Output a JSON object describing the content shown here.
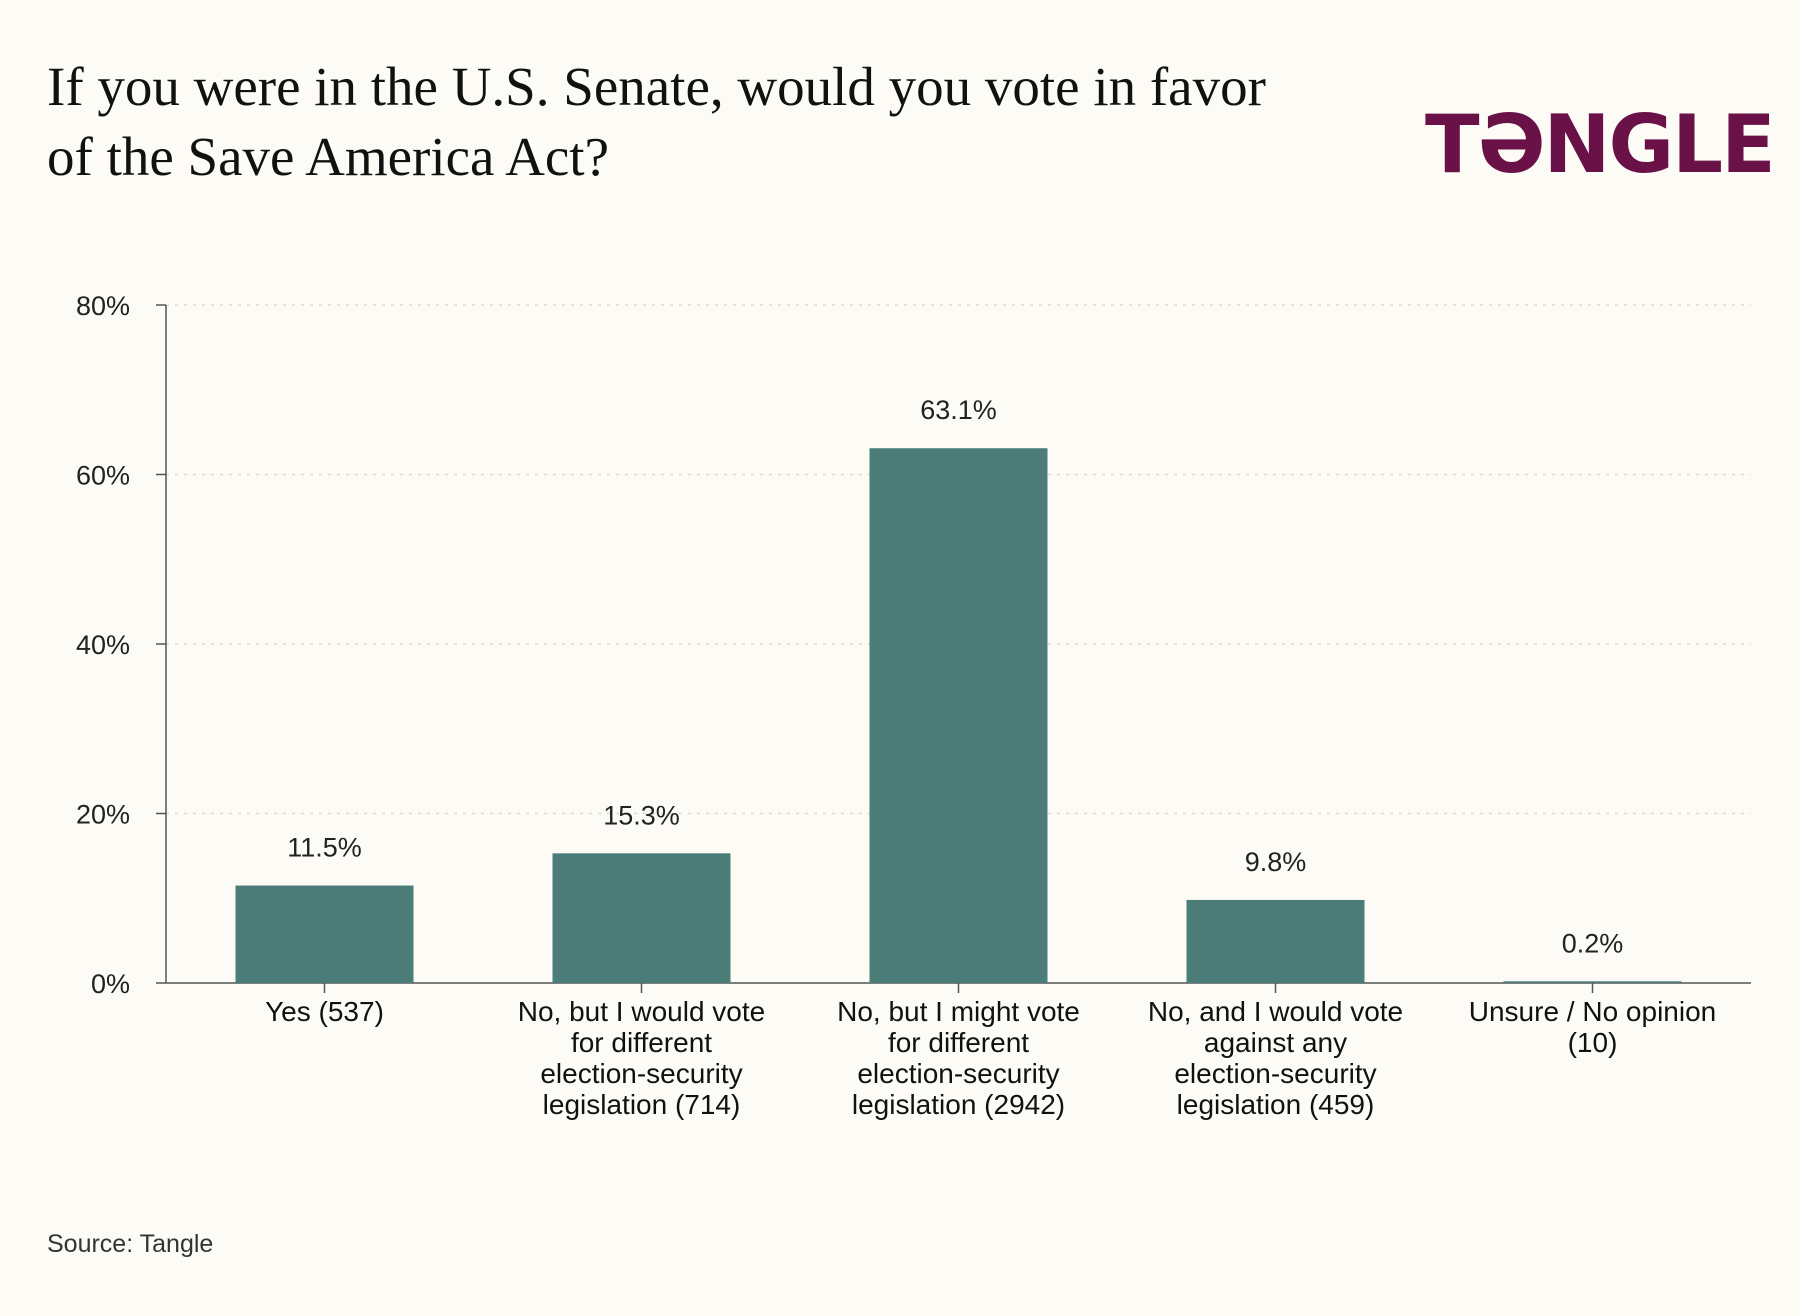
{
  "header": {
    "title": "If you were in the U.S. Senate, would you vote in favor of the Save America Act?",
    "brand": "TƏNGLE"
  },
  "footer": {
    "source": "Source: Tangle"
  },
  "colors": {
    "bar": "#4b7c78",
    "brand": "#6a1147",
    "background": "#fcfbf5"
  },
  "chart_data": {
    "type": "bar",
    "title": "If you were in the U.S. Senate, would you vote in favor of the Save America Act?",
    "xlabel": "",
    "ylabel": "",
    "ylim": [
      0,
      80
    ],
    "yticks": [
      0,
      20,
      40,
      60,
      80
    ],
    "ytick_labels": [
      "0%",
      "20%",
      "40%",
      "60%",
      "80%"
    ],
    "grid": "horizontal dotted",
    "categories": [
      [
        "Yes (537)"
      ],
      [
        "No, but I would vote",
        "for different",
        "election-security",
        "legislation (714)"
      ],
      [
        "No, but I might vote",
        "for different",
        "election-security",
        "legislation (2942)"
      ],
      [
        "No, and I would vote",
        "against any",
        "election-security",
        "legislation (459)"
      ],
      [
        "Unsure / No opinion",
        "(10)"
      ]
    ],
    "values": [
      11.5,
      15.3,
      63.1,
      9.8,
      0.2
    ],
    "value_labels": [
      "11.5%",
      "15.3%",
      "63.1%",
      "9.8%",
      "0.2%"
    ]
  }
}
